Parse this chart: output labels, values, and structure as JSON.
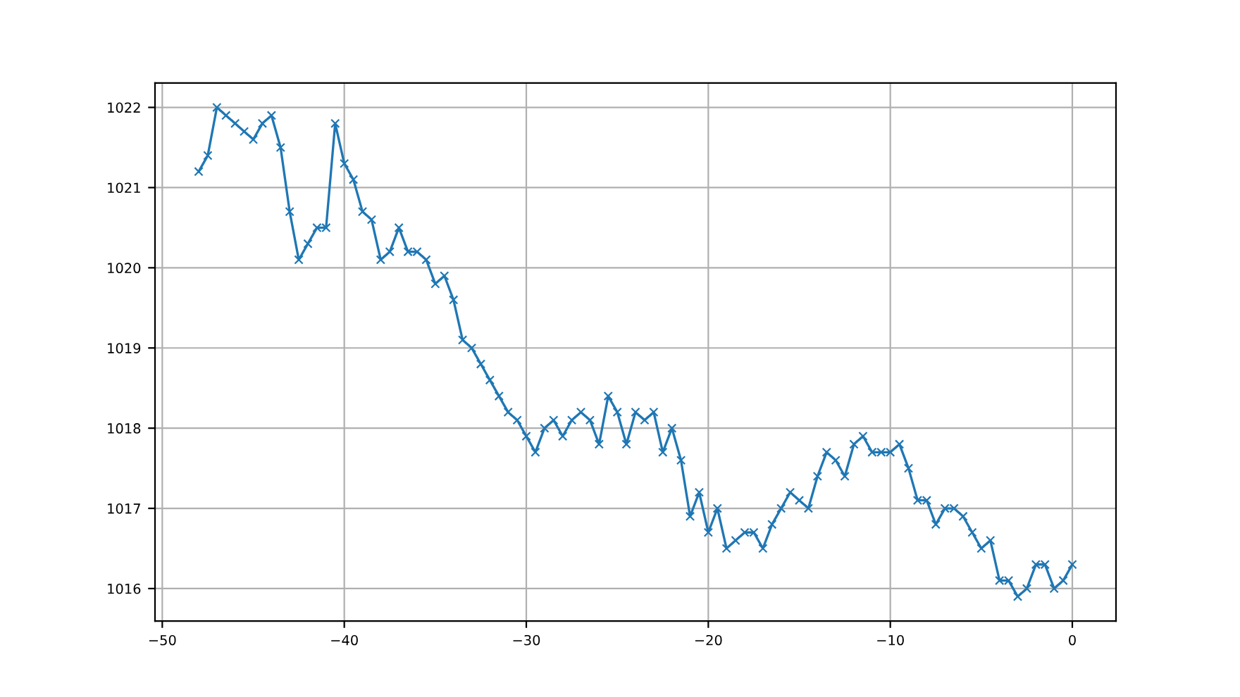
{
  "chart_data": {
    "type": "line",
    "x": [
      -48,
      -47.5,
      -47,
      -46.5,
      -46,
      -45.5,
      -45,
      -44.5,
      -44,
      -43.5,
      -43,
      -42.5,
      -42,
      -41.5,
      -41,
      -40.5,
      -40,
      -39.5,
      -39,
      -38.5,
      -38,
      -37.5,
      -37,
      -36.5,
      -36,
      -35.5,
      -35,
      -34.5,
      -34,
      -33.5,
      -33,
      -32.5,
      -32,
      -31.5,
      -31,
      -30.5,
      -30,
      -29.5,
      -29,
      -28.5,
      -28,
      -27.5,
      -27,
      -26.5,
      -26,
      -25.5,
      -25,
      -24.5,
      -24,
      -23.5,
      -23,
      -22.5,
      -22,
      -21.5,
      -21,
      -20.5,
      -20,
      -19.5,
      -19,
      -18.5,
      -18,
      -17.5,
      -17,
      -16.5,
      -16,
      -15.5,
      -15,
      -14.5,
      -14,
      -13.5,
      -13,
      -12.5,
      -12,
      -11.5,
      -11,
      -10.5,
      -10,
      -9.5,
      -9,
      -8.5,
      -8,
      -7.5,
      -7,
      -6.5,
      -6,
      -5.5,
      -5,
      -4.5,
      -4,
      -3.5,
      -3,
      -2.5,
      -2,
      -1.5,
      -1,
      -0.5,
      0
    ],
    "series": [
      {
        "color": "#1f77b4",
        "values": [
          1021.2,
          1021.4,
          1022.0,
          1021.9,
          1021.8,
          1021.7,
          1021.6,
          1021.8,
          1021.9,
          1021.5,
          1020.7,
          1020.1,
          1020.3,
          1020.5,
          1020.5,
          1021.8,
          1021.3,
          1021.1,
          1020.7,
          1020.6,
          1020.1,
          1020.2,
          1020.5,
          1020.2,
          1020.2,
          1020.1,
          1019.8,
          1019.9,
          1019.6,
          1019.1,
          1019.0,
          1018.8,
          1018.6,
          1018.4,
          1018.2,
          1018.1,
          1017.9,
          1017.7,
          1018.0,
          1018.1,
          1017.9,
          1018.1,
          1018.2,
          1018.1,
          1017.8,
          1018.4,
          1018.2,
          1017.8,
          1018.2,
          1018.1,
          1018.2,
          1017.7,
          1018.0,
          1017.6,
          1016.9,
          1017.2,
          1016.7,
          1017.0,
          1016.5,
          1016.6,
          1016.7,
          1016.7,
          1016.5,
          1016.8,
          1017.0,
          1017.2,
          1017.1,
          1017.0,
          1017.4,
          1017.7,
          1017.6,
          1017.4,
          1017.8,
          1017.9,
          1017.7,
          1017.7,
          1017.7,
          1017.8,
          1017.5,
          1017.1,
          1017.1,
          1016.8,
          1017.0,
          1017.0,
          1016.9,
          1016.7,
          1016.5,
          1016.6,
          1016.1,
          1016.1,
          1015.9,
          1016.0,
          1016.3,
          1016.3,
          1016.0,
          1016.1,
          1016.3
        ]
      }
    ],
    "xlim": [
      -50.4,
      2.4
    ],
    "ylim": [
      1015.595,
      1022.305
    ],
    "xticks": [
      {
        "value": -50,
        "label": "−50"
      },
      {
        "value": -40,
        "label": "−40"
      },
      {
        "value": -30,
        "label": "−30"
      },
      {
        "value": -20,
        "label": "−20"
      },
      {
        "value": -10,
        "label": "−10"
      },
      0
    ],
    "yticks": [
      1016,
      1017,
      1018,
      1019,
      1020,
      1021,
      1022
    ],
    "grid": true,
    "marker": "cross",
    "line_style": "solid"
  }
}
